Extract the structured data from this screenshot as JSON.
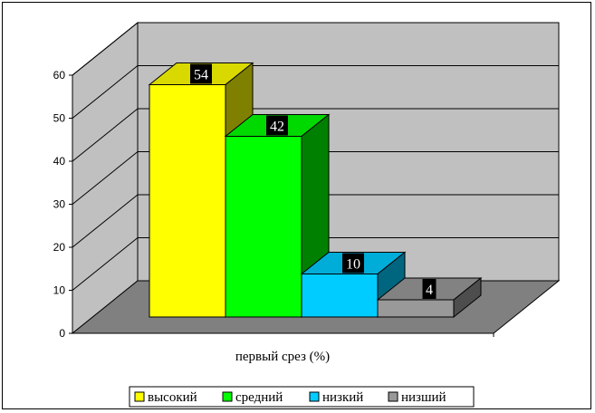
{
  "chart_data": {
    "type": "bar",
    "categories": [
      "первый срез (%)"
    ],
    "xlabel": "первый срез (%)",
    "ylim": [
      0,
      60
    ],
    "yticks": [
      0,
      10,
      20,
      30,
      40,
      50,
      60
    ],
    "grid": true,
    "legend_position": "bottom",
    "series": [
      {
        "name": "высокий",
        "values": [
          54
        ],
        "color": "#ffff00"
      },
      {
        "name": "средний",
        "values": [
          42
        ],
        "color": "#00ff00"
      },
      {
        "name": "низкий",
        "values": [
          10
        ],
        "color": "#00ccff"
      },
      {
        "name": "низший",
        "values": [
          4
        ],
        "color": "#999999"
      }
    ]
  }
}
